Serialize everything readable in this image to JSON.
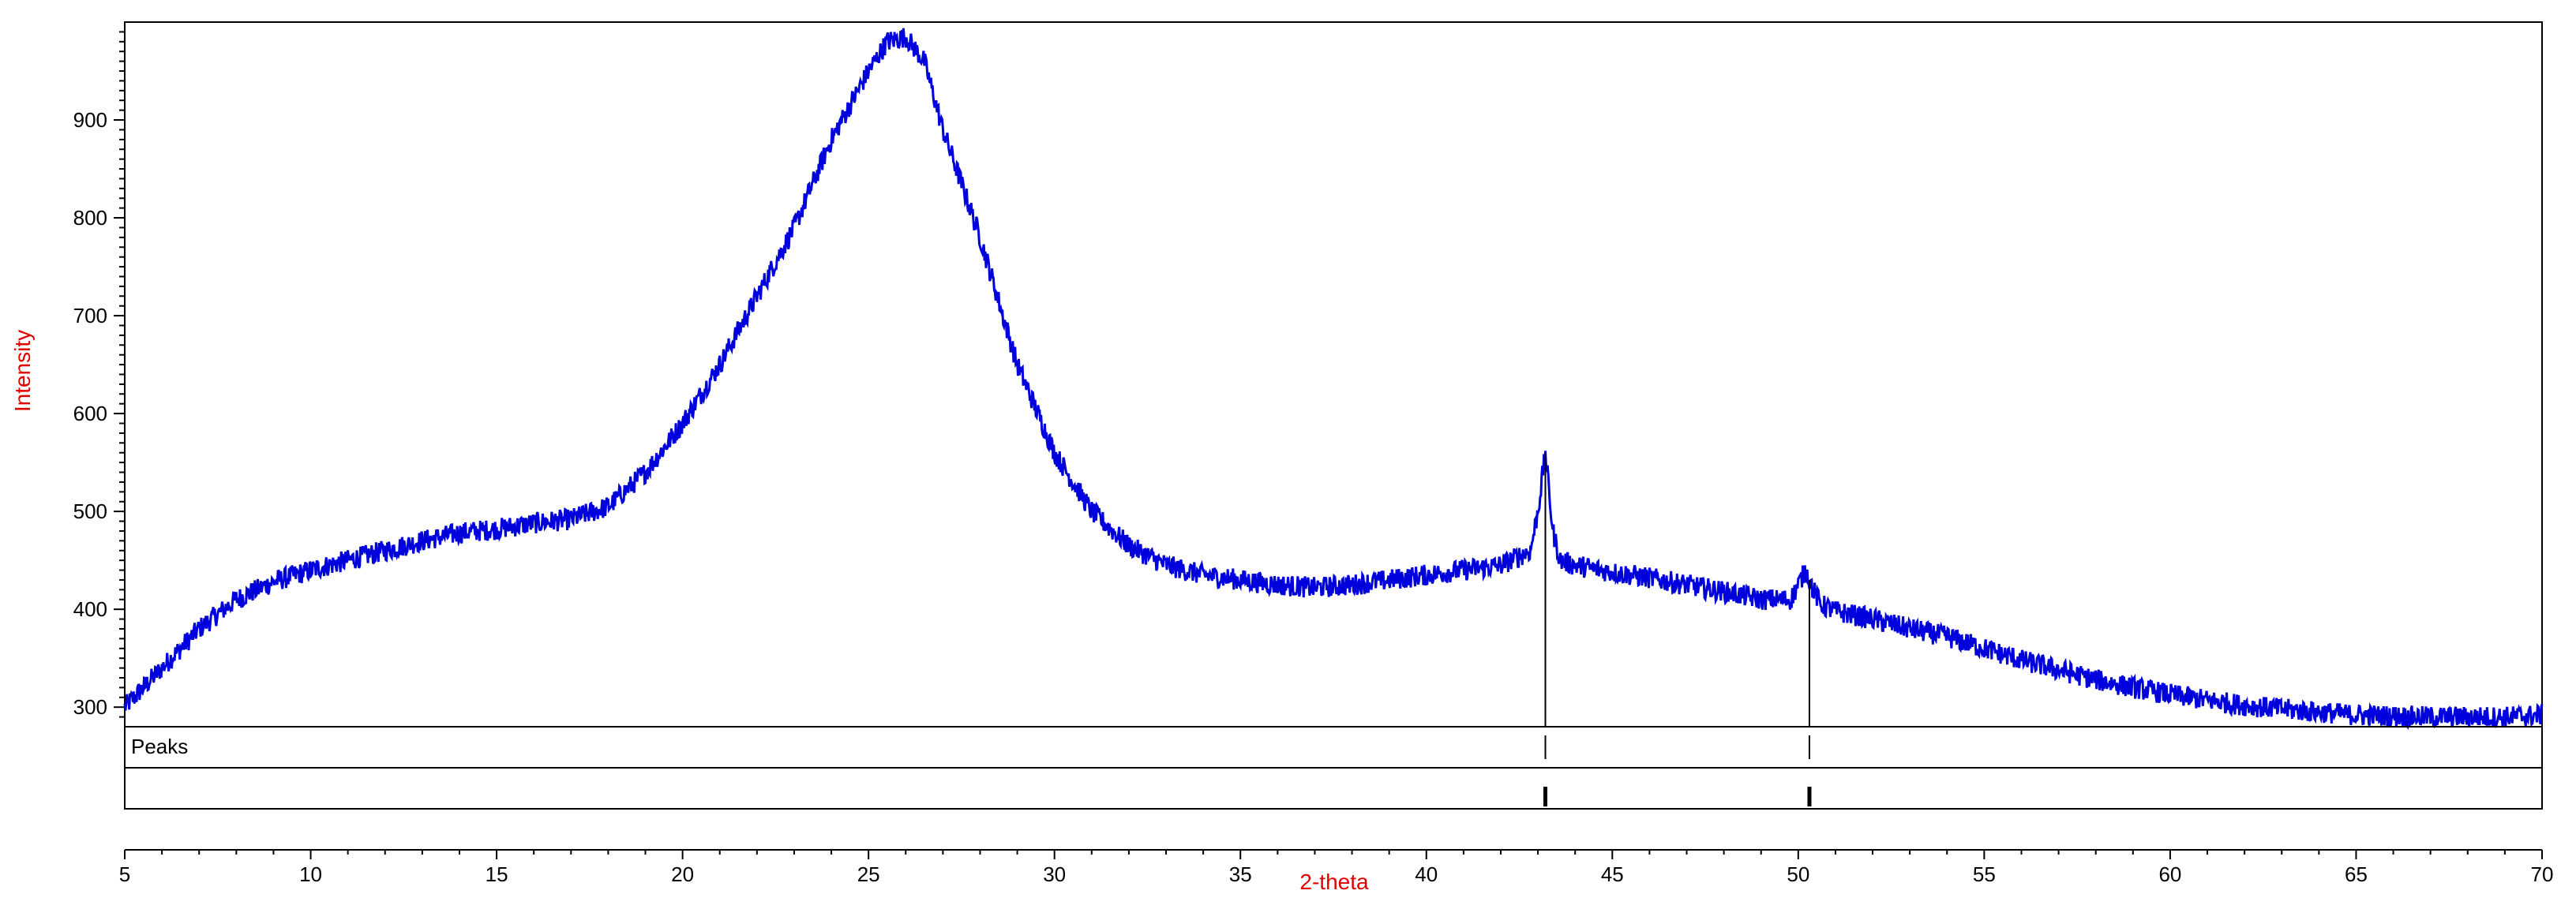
{
  "chart_data": {
    "type": "line",
    "title": "",
    "xlabel": "2-theta",
    "ylabel": "Intensity",
    "xlim": [
      5,
      70
    ],
    "ylim": [
      280,
      1000
    ],
    "grid": false,
    "x_ticks": [
      5,
      10,
      15,
      20,
      25,
      30,
      35,
      40,
      45,
      50,
      55,
      60,
      65,
      70
    ],
    "y_ticks": [
      300,
      400,
      500,
      600,
      700,
      800,
      900
    ],
    "series": [
      {
        "type": "line",
        "x": [
          5,
          6,
          7,
          8,
          9,
          10,
          11,
          12,
          13,
          14,
          15,
          16,
          17,
          18,
          19,
          20,
          21,
          22,
          23,
          24,
          25,
          25.5,
          26,
          26.5,
          27,
          28,
          29,
          30,
          31,
          32,
          33,
          34,
          35,
          36,
          37,
          38,
          39,
          40,
          41,
          42,
          42.8,
          43.0,
          43.2,
          43.4,
          43.6,
          44,
          45,
          46,
          47,
          48,
          49,
          49.8,
          50.0,
          50.2,
          50.4,
          50.6,
          51,
          52,
          53,
          54,
          55,
          56,
          57,
          58,
          59,
          60,
          61,
          62,
          63,
          64,
          65,
          66,
          67,
          68,
          69,
          70
        ],
        "y": [
          300,
          340,
          380,
          410,
          428,
          440,
          450,
          460,
          470,
          478,
          482,
          488,
          492,
          505,
          540,
          590,
          650,
          720,
          790,
          880,
          950,
          980,
          985,
          960,
          890,
          780,
          650,
          560,
          500,
          465,
          445,
          435,
          430,
          425,
          422,
          425,
          430,
          435,
          440,
          445,
          460,
          500,
          560,
          480,
          450,
          445,
          438,
          432,
          425,
          418,
          410,
          410,
          425,
          440,
          420,
          405,
          398,
          390,
          380,
          372,
          360,
          348,
          338,
          328,
          320,
          313,
          307,
          302,
          298,
          295,
          292,
          291,
          290,
          290,
          290,
          292
        ],
        "color": "#0000dd"
      }
    ],
    "peaks_label": "Peaks",
    "peaks": [
      43.2,
      50.3
    ],
    "colors": {
      "series": "#0000dd",
      "axis_title": "#e00000",
      "axis": "#000000"
    }
  }
}
